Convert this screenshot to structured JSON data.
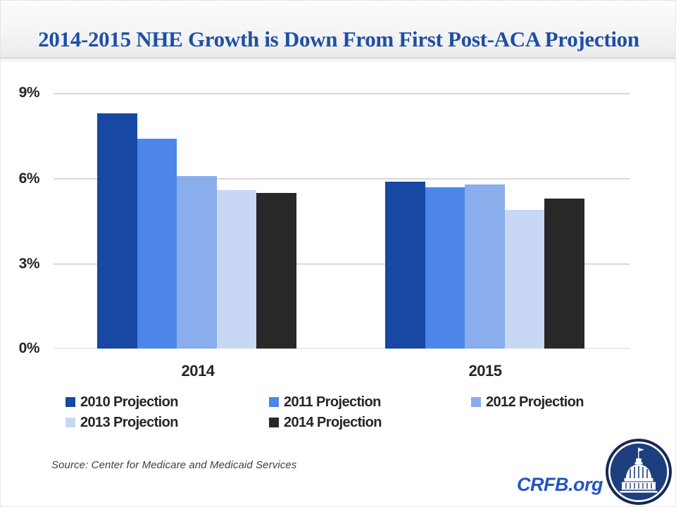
{
  "title": "2014-2015 NHE Growth is Down From First Post-ACA Projection",
  "chart_data": {
    "type": "bar",
    "title": "2014-2015 NHE Growth is Down From First Post-ACA Projection",
    "categories": [
      "2014",
      "2015"
    ],
    "series": [
      {
        "name": "2010 Projection",
        "color": "#1648A4",
        "values": [
          8.3,
          5.9
        ]
      },
      {
        "name": "2011 Projection",
        "color": "#4C86E8",
        "values": [
          7.4,
          5.7
        ]
      },
      {
        "name": "2012 Projection",
        "color": "#8AADEC",
        "values": [
          6.1,
          5.8
        ]
      },
      {
        "name": "2013 Projection",
        "color": "#C8D7F4",
        "values": [
          5.6,
          4.9
        ]
      },
      {
        "name": "2014 Projection",
        "color": "#282828",
        "values": [
          5.5,
          5.3
        ]
      }
    ],
    "xlabel": "",
    "ylabel": "",
    "ylim": [
      0,
      9
    ],
    "y_ticks": [
      "9%",
      "6%",
      "3%",
      "0%"
    ],
    "grid": true,
    "legend_position": "bottom"
  },
  "footer": {
    "source": "Source: Center for Medicare and Medicaid Services",
    "site": "CRFB.org"
  },
  "colors": {
    "title_blue": "#1E4FA6",
    "axis_text": "#262626",
    "gridline": "#D9D9D9",
    "crfb_blue": "#2355C5",
    "logo_navy_outer": "#152A52",
    "logo_navy_inner": "#1E3F7E"
  }
}
